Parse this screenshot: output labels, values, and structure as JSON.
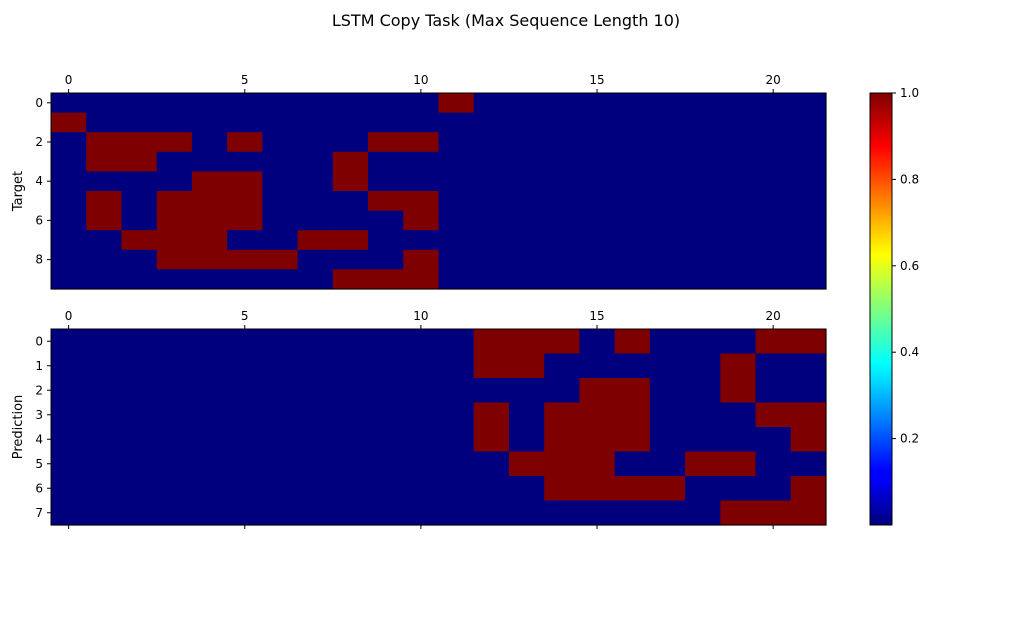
{
  "title": "LSTM Copy Task (Max Sequence Length 10)",
  "colors": {
    "high": "#7f0000",
    "low": "#00007f",
    "frame": "#000000"
  },
  "colormap": "jet",
  "chart_data": [
    {
      "type": "heatmap",
      "name": "target",
      "ylabel": "Target",
      "rows": 10,
      "cols": 22,
      "xticks": [
        0,
        5,
        10,
        15,
        20
      ],
      "yticks": [
        0,
        2,
        4,
        6,
        8
      ],
      "xtick_position": "top",
      "matrix": [
        [
          0,
          0,
          0,
          0,
          0,
          0,
          0,
          0,
          0,
          0,
          0,
          1,
          0,
          0,
          0,
          0,
          0,
          0,
          0,
          0,
          0,
          0
        ],
        [
          1,
          0,
          0,
          0,
          0,
          0,
          0,
          0,
          0,
          0,
          0,
          0,
          0,
          0,
          0,
          0,
          0,
          0,
          0,
          0,
          0,
          0
        ],
        [
          0,
          1,
          1,
          1,
          0,
          1,
          0,
          0,
          0,
          1,
          1,
          0,
          0,
          0,
          0,
          0,
          0,
          0,
          0,
          0,
          0,
          0
        ],
        [
          0,
          1,
          1,
          0,
          0,
          0,
          0,
          0,
          1,
          0,
          0,
          0,
          0,
          0,
          0,
          0,
          0,
          0,
          0,
          0,
          0,
          0
        ],
        [
          0,
          0,
          0,
          0,
          1,
          1,
          0,
          0,
          1,
          0,
          0,
          0,
          0,
          0,
          0,
          0,
          0,
          0,
          0,
          0,
          0,
          0
        ],
        [
          0,
          1,
          0,
          1,
          1,
          1,
          0,
          0,
          0,
          1,
          1,
          0,
          0,
          0,
          0,
          0,
          0,
          0,
          0,
          0,
          0,
          0
        ],
        [
          0,
          1,
          0,
          1,
          1,
          1,
          0,
          0,
          0,
          0,
          1,
          0,
          0,
          0,
          0,
          0,
          0,
          0,
          0,
          0,
          0,
          0
        ],
        [
          0,
          0,
          1,
          1,
          1,
          0,
          0,
          1,
          1,
          0,
          0,
          0,
          0,
          0,
          0,
          0,
          0,
          0,
          0,
          0,
          0,
          0
        ],
        [
          0,
          0,
          0,
          1,
          1,
          1,
          1,
          0,
          0,
          0,
          1,
          0,
          0,
          0,
          0,
          0,
          0,
          0,
          0,
          0,
          0,
          0
        ],
        [
          0,
          0,
          0,
          0,
          0,
          0,
          0,
          0,
          1,
          1,
          1,
          0,
          0,
          0,
          0,
          0,
          0,
          0,
          0,
          0,
          0,
          0
        ]
      ]
    },
    {
      "type": "heatmap",
      "name": "prediction",
      "ylabel": "Prediction",
      "rows": 8,
      "cols": 22,
      "xticks": [
        0,
        5,
        10,
        15,
        20
      ],
      "yticks": [
        0,
        1,
        2,
        3,
        4,
        5,
        6,
        7
      ],
      "xtick_position": "top",
      "matrix": [
        [
          0,
          0,
          0,
          0,
          0,
          0,
          0,
          0,
          0,
          0,
          0,
          0,
          1,
          1,
          1,
          0,
          1,
          0,
          0,
          0,
          1,
          1
        ],
        [
          0,
          0,
          0,
          0,
          0,
          0,
          0,
          0,
          0,
          0,
          0,
          0,
          1,
          1,
          0,
          0,
          0,
          0,
          0,
          1,
          0,
          0
        ],
        [
          0,
          0,
          0,
          0,
          0,
          0,
          0,
          0,
          0,
          0,
          0,
          0,
          0,
          0,
          0,
          1,
          1,
          0,
          0,
          1,
          0,
          0
        ],
        [
          0,
          0,
          0,
          0,
          0,
          0,
          0,
          0,
          0,
          0,
          0,
          0,
          1,
          0,
          1,
          1,
          1,
          0,
          0,
          0,
          1,
          1
        ],
        [
          0,
          0,
          0,
          0,
          0,
          0,
          0,
          0,
          0,
          0,
          0,
          0,
          1,
          0,
          1,
          1,
          1,
          0,
          0,
          0,
          0,
          1
        ],
        [
          0,
          0,
          0,
          0,
          0,
          0,
          0,
          0,
          0,
          0,
          0,
          0,
          0,
          1,
          1,
          1,
          0,
          0,
          1,
          1,
          0,
          0
        ],
        [
          0,
          0,
          0,
          0,
          0,
          0,
          0,
          0,
          0,
          0,
          0,
          0,
          0,
          0,
          1,
          1,
          1,
          1,
          0,
          0,
          0,
          1
        ],
        [
          0,
          0,
          0,
          0,
          0,
          0,
          0,
          0,
          0,
          0,
          0,
          0,
          0,
          0,
          0,
          0,
          0,
          0,
          0,
          1,
          1,
          1
        ]
      ]
    }
  ],
  "colorbar": {
    "min": 0,
    "max": 1,
    "ticks": [
      0.2,
      0.4,
      0.6,
      0.8,
      1.0
    ],
    "tick_labels": [
      "0.2",
      "0.4",
      "0.6",
      "0.8",
      "1.0"
    ]
  }
}
